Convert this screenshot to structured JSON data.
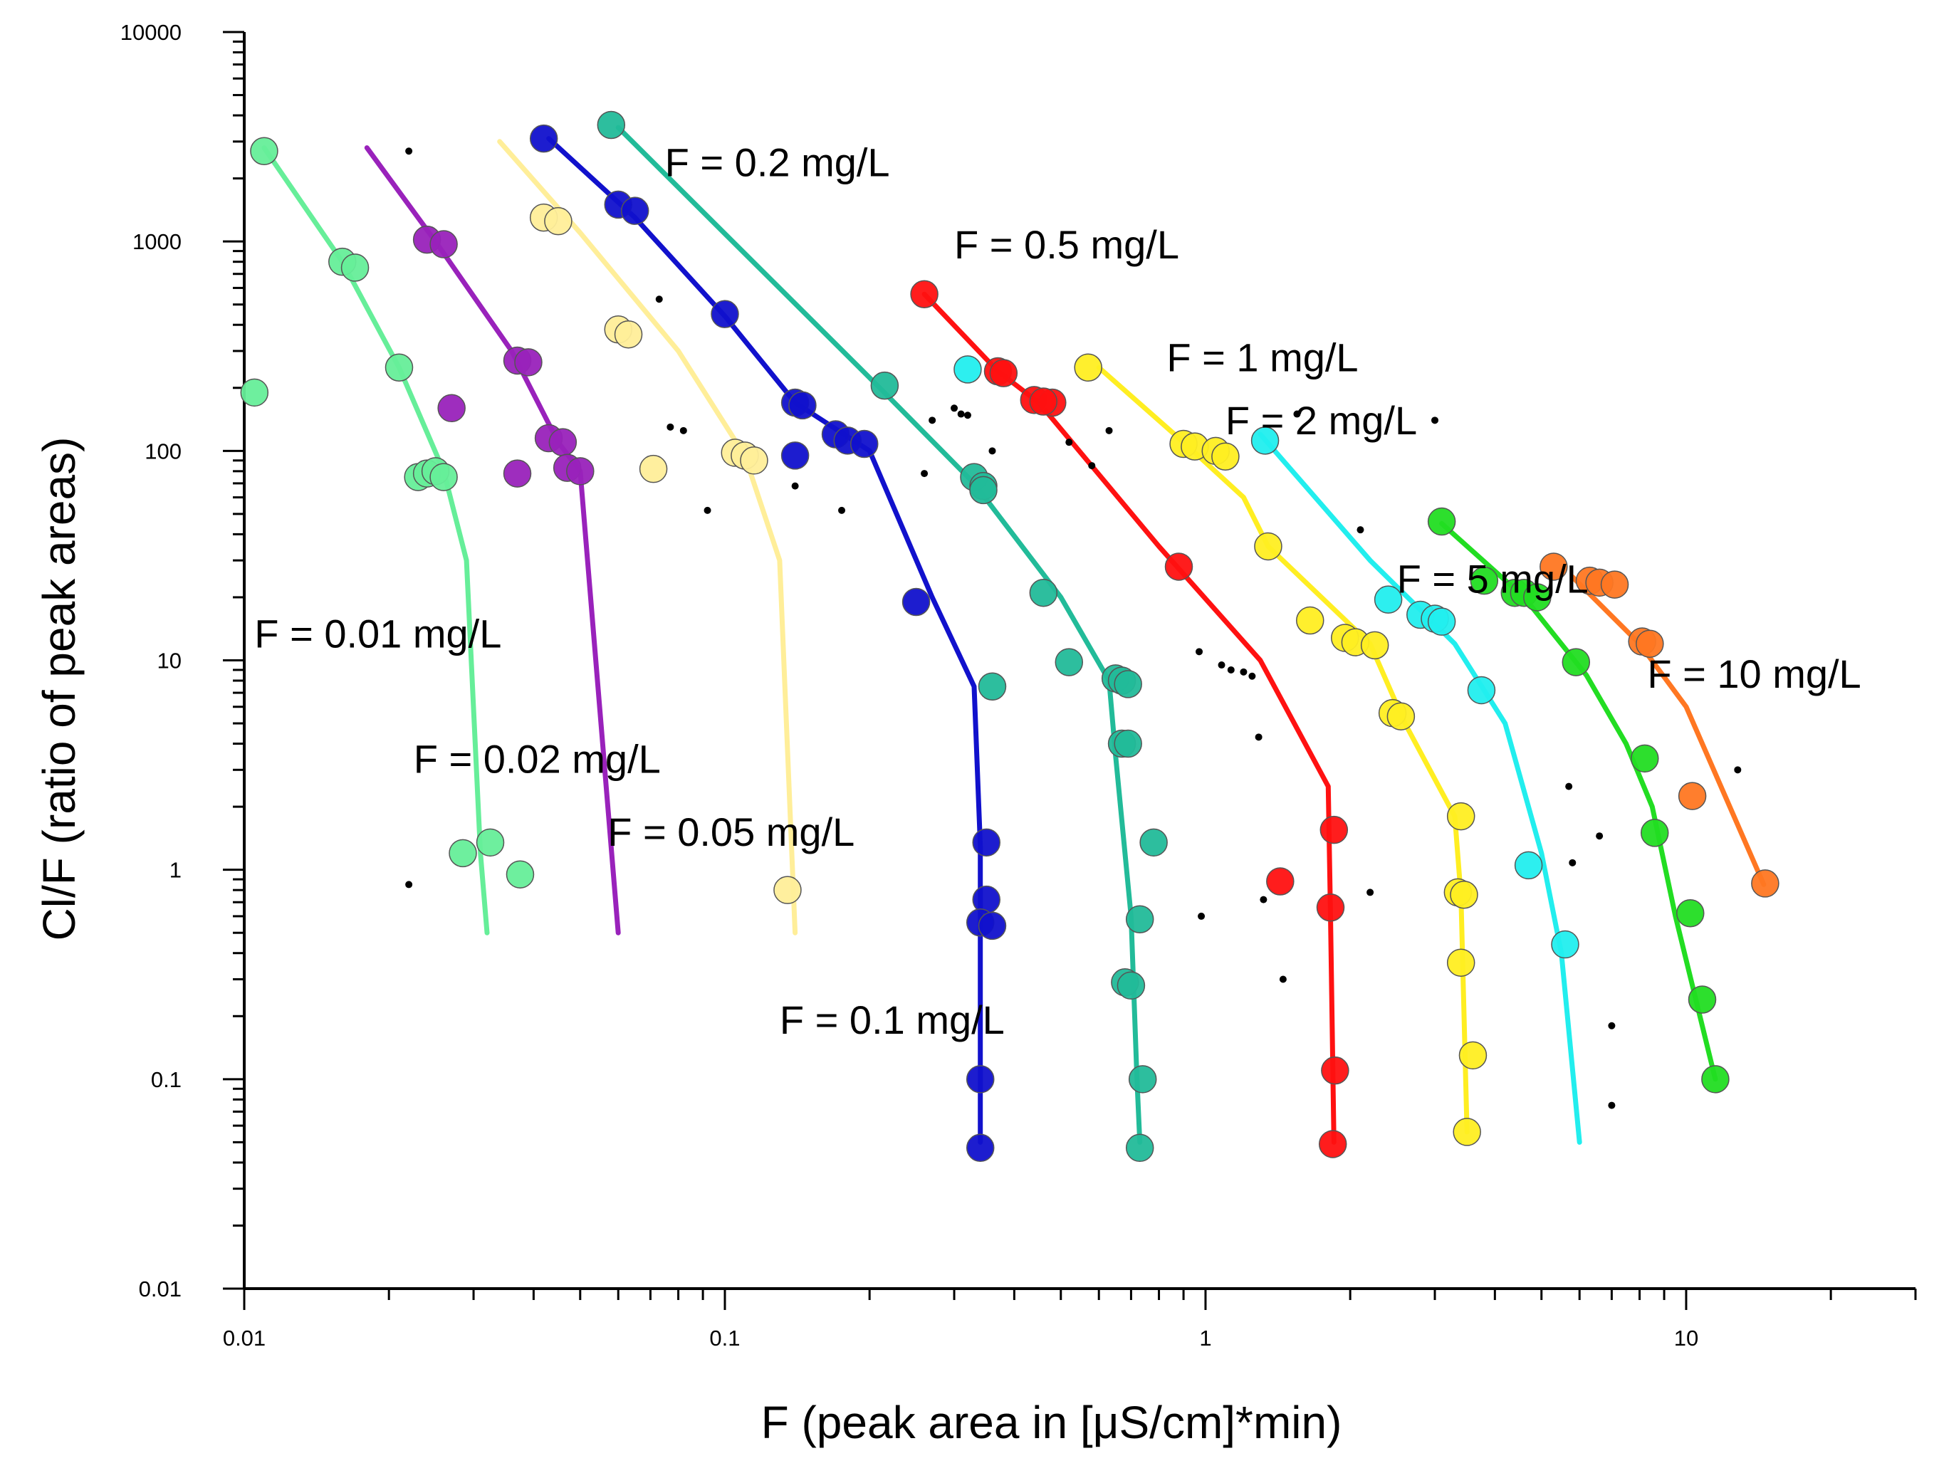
{
  "chart_data": {
    "type": "scatter",
    "xscale": "log",
    "yscale": "log",
    "xlim": [
      0.01,
      30
    ],
    "ylim": [
      0.01,
      10000
    ],
    "xlabel": "F (peak area in [μS/cm]*min)",
    "ylabel": "Cl/F (ratio of peak areas)",
    "xticks": [
      {
        "value": 0.01,
        "label": "0.01"
      },
      {
        "value": 0.1,
        "label": "0.1"
      },
      {
        "value": 1,
        "label": "1"
      },
      {
        "value": 10,
        "label": "10"
      }
    ],
    "yticks": [
      {
        "value": 0.01,
        "label": "0.01"
      },
      {
        "value": 0.1,
        "label": "0.1"
      },
      {
        "value": 1,
        "label": "1"
      },
      {
        "value": 10,
        "label": "10"
      },
      {
        "value": 100,
        "label": "100"
      },
      {
        "value": 1000,
        "label": "1000"
      },
      {
        "value": 10000,
        "label": "10000"
      }
    ],
    "series": [
      {
        "name": "F = 0.01 mg/L",
        "color": "#66ee99",
        "label_at": [
          0.0105,
          11.5
        ],
        "line": [
          [
            0.011,
            2800
          ],
          [
            0.016,
            800
          ],
          [
            0.021,
            250
          ],
          [
            0.026,
            80
          ],
          [
            0.029,
            30
          ],
          [
            0.031,
            1.2
          ],
          [
            0.032,
            0.5
          ]
        ],
        "points": [
          [
            0.011,
            2700
          ],
          [
            0.0105,
            190
          ],
          [
            0.016,
            800
          ],
          [
            0.017,
            750
          ],
          [
            0.021,
            250
          ],
          [
            0.023,
            75
          ],
          [
            0.024,
            78
          ],
          [
            0.025,
            80
          ],
          [
            0.026,
            75
          ],
          [
            0.0285,
            1.2
          ],
          [
            0.0325,
            1.35
          ],
          [
            0.0375,
            0.95
          ]
        ]
      },
      {
        "name": "F = 0.02 mg/L",
        "color": "#9922bb",
        "label_at": [
          0.0225,
          2.9
        ],
        "line": [
          [
            0.018,
            2800
          ],
          [
            0.025,
            1000
          ],
          [
            0.036,
            300
          ],
          [
            0.045,
            110
          ],
          [
            0.05,
            80
          ],
          [
            0.06,
            0.5
          ]
        ],
        "points": [
          [
            0.024,
            1020
          ],
          [
            0.026,
            970
          ],
          [
            0.027,
            160
          ],
          [
            0.037,
            270
          ],
          [
            0.039,
            265
          ],
          [
            0.037,
            78
          ],
          [
            0.043,
            115
          ],
          [
            0.046,
            110
          ],
          [
            0.047,
            83
          ],
          [
            0.05,
            80
          ]
        ]
      },
      {
        "name": "F = 0.05 mg/L",
        "color": "#ffee99",
        "label_at": [
          0.057,
          1.3
        ],
        "line": [
          [
            0.034,
            3000
          ],
          [
            0.05,
            1100
          ],
          [
            0.08,
            300
          ],
          [
            0.11,
            95
          ],
          [
            0.13,
            30
          ],
          [
            0.14,
            0.5
          ]
        ],
        "points": [
          [
            0.042,
            1300
          ],
          [
            0.045,
            1250
          ],
          [
            0.06,
            380
          ],
          [
            0.063,
            360
          ],
          [
            0.071,
            82
          ],
          [
            0.105,
            98
          ],
          [
            0.11,
            95
          ],
          [
            0.115,
            90
          ],
          [
            0.135,
            0.8
          ]
        ]
      },
      {
        "name": "F = 0.1 mg/L",
        "color": "#1111cc",
        "label_at": [
          0.13,
          0.165
        ],
        "line": [
          [
            0.043,
            3100
          ],
          [
            0.065,
            1300
          ],
          [
            0.1,
            440
          ],
          [
            0.14,
            170
          ],
          [
            0.2,
            100
          ],
          [
            0.27,
            20
          ],
          [
            0.33,
            7.5
          ],
          [
            0.34,
            1.3
          ],
          [
            0.34,
            0.05
          ]
        ],
        "points": [
          [
            0.042,
            3100
          ],
          [
            0.06,
            1500
          ],
          [
            0.065,
            1400
          ],
          [
            0.1,
            450
          ],
          [
            0.14,
            170
          ],
          [
            0.145,
            165
          ],
          [
            0.14,
            95
          ],
          [
            0.17,
            120
          ],
          [
            0.18,
            112
          ],
          [
            0.195,
            108
          ],
          [
            0.25,
            19
          ],
          [
            0.35,
            1.35
          ],
          [
            0.35,
            0.72
          ],
          [
            0.34,
            0.56
          ],
          [
            0.36,
            0.54
          ],
          [
            0.34,
            0.1
          ],
          [
            0.34,
            0.047
          ]
        ]
      },
      {
        "name": "F = 0.2 mg/L",
        "color": "#22bb99",
        "label_at": [
          0.075,
          2050
        ],
        "line": [
          [
            0.06,
            3500
          ],
          [
            0.21,
            200
          ],
          [
            0.33,
            70
          ],
          [
            0.5,
            20
          ],
          [
            0.63,
            8
          ],
          [
            0.65,
            3.5
          ],
          [
            0.7,
            0.6
          ],
          [
            0.72,
            0.1
          ],
          [
            0.73,
            0.05
          ]
        ],
        "points": [
          [
            0.058,
            3600
          ],
          [
            0.215,
            205
          ],
          [
            0.33,
            75
          ],
          [
            0.345,
            68
          ],
          [
            0.345,
            65
          ],
          [
            0.46,
            21
          ],
          [
            0.52,
            9.8
          ],
          [
            0.36,
            7.5
          ],
          [
            0.65,
            8.2
          ],
          [
            0.67,
            8
          ],
          [
            0.69,
            7.7
          ],
          [
            0.67,
            4
          ],
          [
            0.69,
            4
          ],
          [
            0.78,
            1.35
          ],
          [
            0.73,
            0.58
          ],
          [
            0.68,
            0.29
          ],
          [
            0.7,
            0.28
          ],
          [
            0.74,
            0.1
          ],
          [
            0.73,
            0.047
          ]
        ]
      },
      {
        "name": "F = 0.5 mg/L",
        "color": "#ff1111",
        "label_at": [
          0.3,
          830
        ],
        "line": [
          [
            0.26,
            560
          ],
          [
            0.37,
            240
          ],
          [
            0.45,
            170
          ],
          [
            0.8,
            35
          ],
          [
            1.3,
            10
          ],
          [
            1.8,
            2.5
          ],
          [
            1.82,
            0.6
          ],
          [
            1.85,
            0.05
          ]
        ],
        "points": [
          [
            0.26,
            560
          ],
          [
            0.37,
            240
          ],
          [
            0.38,
            235
          ],
          [
            0.44,
            175
          ],
          [
            0.48,
            170
          ],
          [
            0.46,
            172
          ],
          [
            0.88,
            28
          ],
          [
            1.43,
            0.88
          ],
          [
            1.85,
            1.55
          ],
          [
            1.82,
            0.66
          ],
          [
            1.86,
            0.11
          ],
          [
            1.84,
            0.049
          ]
        ]
      },
      {
        "name": "F = 1 mg/L",
        "color": "#ffee22",
        "label_at": [
          0.83,
          240
        ],
        "line": [
          [
            0.6,
            250
          ],
          [
            0.9,
            110
          ],
          [
            1.2,
            60
          ],
          [
            1.35,
            35
          ],
          [
            2.2,
            12
          ],
          [
            2.6,
            5
          ],
          [
            3.3,
            1.8
          ],
          [
            3.4,
            0.75
          ],
          [
            3.5,
            0.056
          ]
        ],
        "points": [
          [
            0.57,
            250
          ],
          [
            0.9,
            108
          ],
          [
            0.95,
            105
          ],
          [
            1.05,
            100
          ],
          [
            1.1,
            94
          ],
          [
            1.35,
            35
          ],
          [
            1.65,
            15.5
          ],
          [
            1.95,
            12.8
          ],
          [
            2.05,
            12.2
          ],
          [
            2.25,
            11.8
          ],
          [
            2.45,
            5.6
          ],
          [
            2.55,
            5.4
          ],
          [
            3.4,
            1.8
          ],
          [
            3.35,
            0.78
          ],
          [
            3.45,
            0.76
          ],
          [
            3.4,
            0.36
          ],
          [
            3.6,
            0.13
          ],
          [
            3.5,
            0.056
          ]
        ]
      },
      {
        "name": "F = 2 mg/L",
        "color": "#22eeee",
        "label_at": [
          1.1,
          120
        ],
        "line": [
          [
            1.3,
            120
          ],
          [
            2.2,
            30
          ],
          [
            3.3,
            12
          ],
          [
            4.2,
            5
          ],
          [
            5.0,
            1.2
          ],
          [
            5.5,
            0.4
          ],
          [
            6.0,
            0.05
          ]
        ],
        "points": [
          [
            1.33,
            112
          ],
          [
            0.32,
            245
          ],
          [
            2.4,
            19.5
          ],
          [
            2.8,
            16.5
          ],
          [
            3.0,
            15.8
          ],
          [
            3.1,
            15.3
          ],
          [
            3.75,
            7.2
          ],
          [
            4.7,
            1.05
          ],
          [
            5.6,
            0.44
          ]
        ]
      },
      {
        "name": "F = 5 mg/L",
        "color": "#22dd22",
        "label_at": [
          2.5,
          21
        ],
        "line": [
          [
            3.1,
            45
          ],
          [
            4.6,
            20
          ],
          [
            6.2,
            8.5
          ],
          [
            7.5,
            4
          ],
          [
            8.5,
            2
          ],
          [
            9.5,
            0.6
          ],
          [
            11.5,
            0.1
          ]
        ],
        "points": [
          [
            3.1,
            46
          ],
          [
            3.8,
            24
          ],
          [
            4.4,
            21
          ],
          [
            4.6,
            21
          ],
          [
            4.9,
            20
          ],
          [
            5.9,
            9.8
          ],
          [
            8.2,
            3.4
          ],
          [
            8.6,
            1.5
          ],
          [
            10.2,
            0.62
          ],
          [
            10.8,
            0.24
          ],
          [
            11.5,
            0.1
          ]
        ]
      },
      {
        "name": "F = 10 mg/L",
        "color": "#ff7722",
        "label_at": [
          8.3,
          7.4
        ],
        "line": [
          [
            5.8,
            25
          ],
          [
            8,
            12
          ],
          [
            10,
            6
          ],
          [
            14.5,
            0.85
          ]
        ],
        "points": [
          [
            5.3,
            28
          ],
          [
            6.3,
            24
          ],
          [
            6.6,
            23.5
          ],
          [
            7.1,
            23
          ],
          [
            8.1,
            12.3
          ],
          [
            8.4,
            12
          ],
          [
            10.3,
            2.25
          ],
          [
            14.6,
            0.86
          ]
        ]
      }
    ],
    "scatter_dots": [
      [
        0.022,
        2700
      ],
      [
        0.022,
        0.85
      ],
      [
        0.073,
        530
      ],
      [
        0.077,
        130
      ],
      [
        0.082,
        125
      ],
      [
        0.092,
        52
      ],
      [
        0.14,
        68
      ],
      [
        0.175,
        52
      ],
      [
        0.26,
        78
      ],
      [
        0.27,
        140
      ],
      [
        0.3,
        160
      ],
      [
        0.31,
        150
      ],
      [
        0.32,
        148
      ],
      [
        0.36,
        100
      ],
      [
        0.52,
        110
      ],
      [
        0.58,
        85
      ],
      [
        0.63,
        125
      ],
      [
        0.97,
        11
      ],
      [
        0.98,
        0.6
      ],
      [
        1.08,
        9.5
      ],
      [
        1.13,
        9
      ],
      [
        1.2,
        8.8
      ],
      [
        1.25,
        8.4
      ],
      [
        1.29,
        4.3
      ],
      [
        1.32,
        0.72
      ],
      [
        1.45,
        0.3
      ],
      [
        1.55,
        150
      ],
      [
        2.1,
        42
      ],
      [
        2.2,
        0.78
      ],
      [
        3.0,
        140
      ],
      [
        5.7,
        2.5
      ],
      [
        5.8,
        1.08
      ],
      [
        6.6,
        1.45
      ],
      [
        7.0,
        0.18
      ],
      [
        7.0,
        0.075
      ],
      [
        12.8,
        3.0
      ]
    ]
  }
}
